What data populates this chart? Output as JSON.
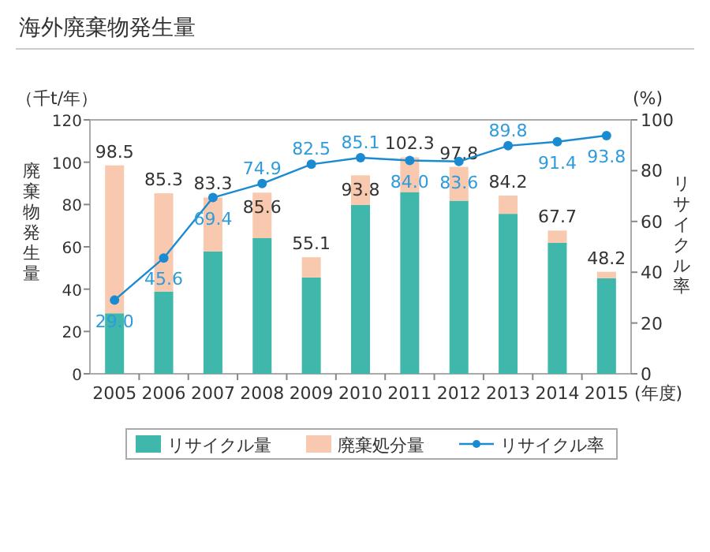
{
  "chart_data": {
    "type": "bar",
    "stacked": true,
    "title": "海外廃棄物発生量",
    "ylabel": "廃棄物発生量",
    "y2label": "リサイクル率",
    "annotations": [
      "（千t/年）",
      "(%)",
      "(年度)"
    ],
    "categories": [
      "2005",
      "2006",
      "2007",
      "2008",
      "2009",
      "2010",
      "2011",
      "2012",
      "2013",
      "2014",
      "2015"
    ],
    "series": [
      {
        "name": "リサイクル量",
        "color": "#3fb8ab",
        "values": [
          28.6,
          38.9,
          57.8,
          64.1,
          45.5,
          79.8,
          85.9,
          81.8,
          75.6,
          61.9,
          45.2
        ]
      },
      {
        "name": "廃棄処分量",
        "color": "#f8c9ae",
        "values": [
          69.9,
          46.4,
          25.5,
          21.5,
          9.6,
          14.0,
          16.4,
          16.0,
          8.6,
          5.8,
          3.0
        ]
      },
      {
        "name": "リサイクル率",
        "type": "line",
        "axis": "y2",
        "color": "#1a8bd0",
        "marker": "circle",
        "values": [
          29.0,
          45.6,
          69.4,
          74.9,
          82.5,
          85.1,
          84.0,
          83.6,
          89.8,
          91.4,
          93.8
        ],
        "value_labels": [
          "29.0",
          "45.6",
          "69.4",
          "74.9",
          "82.5",
          "85.1",
          "84.0",
          "83.6",
          "89.8",
          "91.4",
          "93.8"
        ]
      }
    ],
    "totals": [
      "98.5",
      "85.3",
      "83.3",
      "85.6",
      "55.1",
      "93.8",
      "102.3",
      "97.8",
      "84.2",
      "67.7",
      "48.2"
    ],
    "ylim": [
      0,
      120
    ],
    "yticks": [
      0,
      20,
      40,
      60,
      80,
      100,
      120
    ],
    "y2lim": [
      0,
      100
    ],
    "y2ticks": [
      0,
      20,
      40,
      60,
      80,
      100
    ],
    "legend": "bottom"
  }
}
